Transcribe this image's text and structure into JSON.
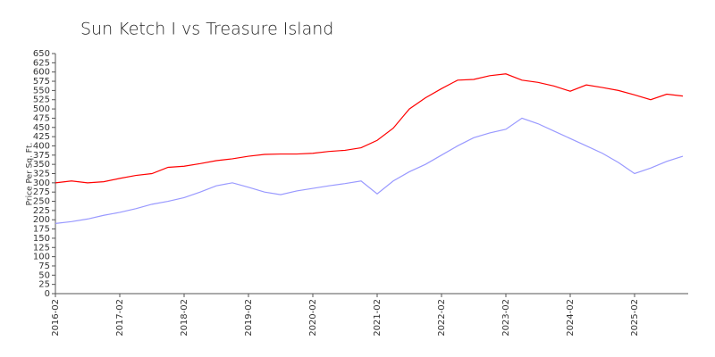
{
  "chart_data": {
    "type": "line",
    "title": "Sun Ketch I vs Treasure Island",
    "y_label": "Price Per Sq. Ft.",
    "categories": [
      "2016-02",
      null,
      null,
      null,
      "2017-02",
      null,
      null,
      null,
      "2018-02",
      null,
      null,
      null,
      "2019-02",
      null,
      null,
      null,
      "2020-02",
      null,
      null,
      null,
      "2021-02",
      null,
      null,
      null,
      "2022-02",
      null,
      null,
      null,
      "2023-02",
      null,
      null,
      null,
      "2024-02",
      null,
      null,
      null,
      "2025-02",
      null,
      null,
      null
    ],
    "series": [
      {
        "color": "#ff0000",
        "values": [
          300,
          305,
          300,
          303,
          312,
          320,
          325,
          342,
          345,
          352,
          360,
          365,
          372,
          377,
          378,
          378,
          380,
          385,
          388,
          395,
          415,
          448,
          500,
          530,
          555,
          578,
          580,
          590,
          595,
          578,
          572,
          562,
          548,
          565,
          558,
          550,
          538,
          525,
          540,
          535
        ]
      },
      {
        "color": "#9999ff",
        "values": [
          190,
          195,
          202,
          212,
          220,
          230,
          242,
          250,
          260,
          275,
          292,
          300,
          288,
          275,
          268,
          278,
          285,
          292,
          298,
          305,
          270,
          305,
          330,
          350,
          375,
          400,
          422,
          435,
          445,
          475,
          460,
          440,
          420,
          400,
          380,
          355,
          325,
          340,
          358,
          372
        ]
      }
    ],
    "ylim": [
      0,
      650
    ],
    "yticks": [
      0,
      25,
      50,
      75,
      100,
      125,
      150,
      175,
      200,
      225,
      250,
      275,
      300,
      325,
      350,
      375,
      400,
      425,
      450,
      475,
      500,
      525,
      550,
      575,
      600,
      625,
      650
    ]
  }
}
